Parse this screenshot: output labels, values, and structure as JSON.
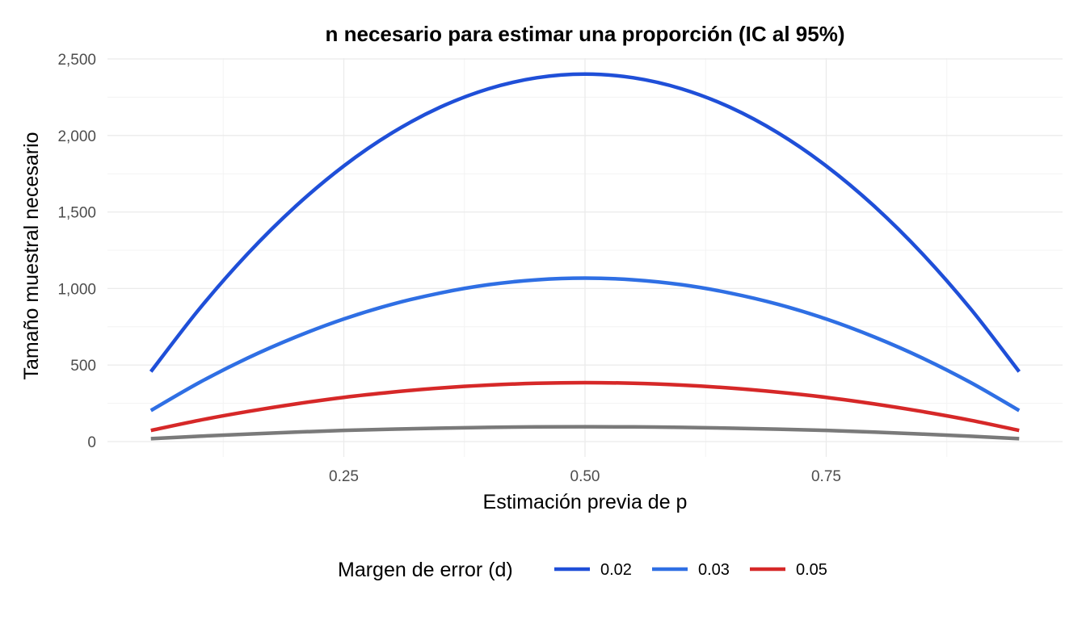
{
  "chart_data": {
    "type": "line",
    "title": "n necesario para estimar una proporción (IC al 95%)",
    "xlabel": "Estimación previa de p",
    "ylabel": "Tamaño muestral necesario",
    "xlim": [
      0.05,
      0.95
    ],
    "ylim": [
      0,
      2500
    ],
    "x_ticks": [
      0.25,
      0.5,
      0.75
    ],
    "x_tick_labels": [
      "0.25",
      "0.50",
      "0.75"
    ],
    "y_ticks": [
      0,
      500,
      1000,
      1500,
      2000,
      2500
    ],
    "y_tick_labels": [
      "0",
      "500",
      "1,000",
      "1,500",
      "2,000",
      "2,500"
    ],
    "grid": true,
    "legend": {
      "title": "Margen de error (d)",
      "position": "bottom",
      "entries": [
        "0.02",
        "0.03",
        "0.05"
      ]
    },
    "x": [
      0.05,
      0.1,
      0.15,
      0.2,
      0.25,
      0.3,
      0.35,
      0.4,
      0.45,
      0.5,
      0.55,
      0.6,
      0.65,
      0.7,
      0.75,
      0.8,
      0.85,
      0.9,
      0.95
    ],
    "series": [
      {
        "name": "0.02",
        "color": "#1f4fd8",
        "values": [
          457,
          865,
          1225,
          1537,
          1801,
          2017,
          2185,
          2305,
          2377,
          2401,
          2377,
          2305,
          2185,
          2017,
          1801,
          1537,
          1225,
          865,
          457
        ]
      },
      {
        "name": "0.03",
        "color": "#2f6fe4",
        "values": [
          203,
          385,
          545,
          683,
          801,
          897,
          971,
          1025,
          1057,
          1068,
          1057,
          1025,
          971,
          897,
          801,
          683,
          545,
          385,
          203
        ]
      },
      {
        "name": "0.05",
        "color": "#d62828",
        "values": [
          73,
          139,
          196,
          246,
          289,
          323,
          350,
          369,
          381,
          385,
          381,
          369,
          350,
          323,
          289,
          246,
          196,
          139,
          73
        ]
      },
      {
        "color": "#7a7a7a",
        "values": [
          19,
          35,
          49,
          62,
          73,
          81,
          88,
          93,
          96,
          97,
          96,
          93,
          88,
          81,
          73,
          62,
          49,
          35,
          19
        ]
      }
    ]
  }
}
